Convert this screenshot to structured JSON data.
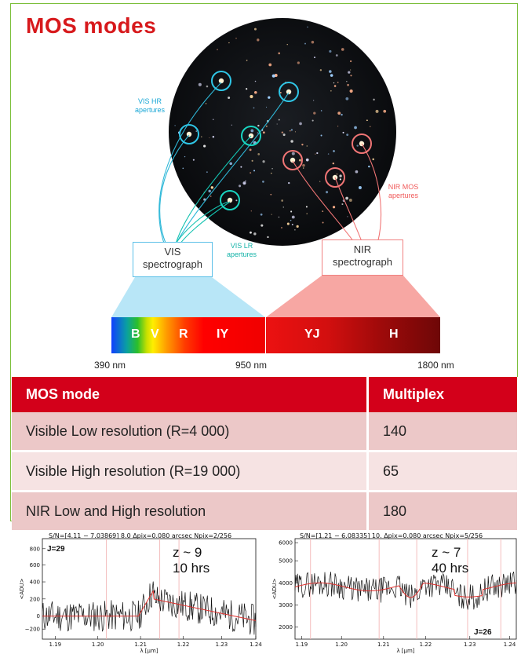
{
  "title": "MOS modes",
  "annotations": {
    "vis_hr": "VIS HR\napertures",
    "vis_lr": "VIS LR\napertures",
    "nir_mos": "NIR MOS\napertures"
  },
  "spectrographs": {
    "vis": "VIS\nspectrograph",
    "nir": "NIR\nspectrograph"
  },
  "bands": {
    "vis": [
      "B",
      "V",
      "R",
      "IY"
    ],
    "nir": [
      "YJ",
      "H"
    ]
  },
  "wavelengths": [
    "390 nm",
    "950 nm",
    "1800 nm"
  ],
  "colors": {
    "title_red": "#d7191c",
    "table_header": "#d3001a",
    "row_dark": "#ecc8c8",
    "row_light": "#f6e3e3",
    "vis_cyan": "#5cc0e8",
    "nir_pink": "#f08080"
  },
  "table": {
    "headers": [
      "MOS mode",
      "Multiplex"
    ],
    "rows": [
      [
        "Visible Low resolution (R=4 000)",
        "140"
      ],
      [
        "Visible High resolution (R=19 000)",
        "65"
      ],
      [
        "NIR Low and High resolution",
        "180"
      ]
    ]
  },
  "plots": [
    {
      "header": "S/N=[4.11 − 7.03869] 8.0 Δpix=0.080 arcsec Npix=2/256",
      "label": "J=29",
      "z": "z ~ 9",
      "time": "10 hrs",
      "ylabel": "<ADU>",
      "xlabel": "λ [μm]",
      "yticks": [
        "−200",
        "0",
        "200",
        "400",
        "600",
        "800"
      ],
      "xticks": [
        "1.19",
        "1.20",
        "1.21",
        "1.22",
        "1.23",
        "1.24"
      ]
    },
    {
      "header": "S/N=[1.21 − 6.08335] 10. Δpix=0.080 arcsec Npix=5/256",
      "label": "J=26",
      "z": "z ~ 7",
      "time": "40 hrs",
      "ylabel": "<ADU>",
      "xlabel": "λ [μm]",
      "yticks": [
        "2000",
        "3000",
        "4000",
        "5000",
        "6000"
      ],
      "xticks": [
        "1.19",
        "1.20",
        "1.21",
        "1.22",
        "1.23",
        "1.24"
      ]
    }
  ]
}
